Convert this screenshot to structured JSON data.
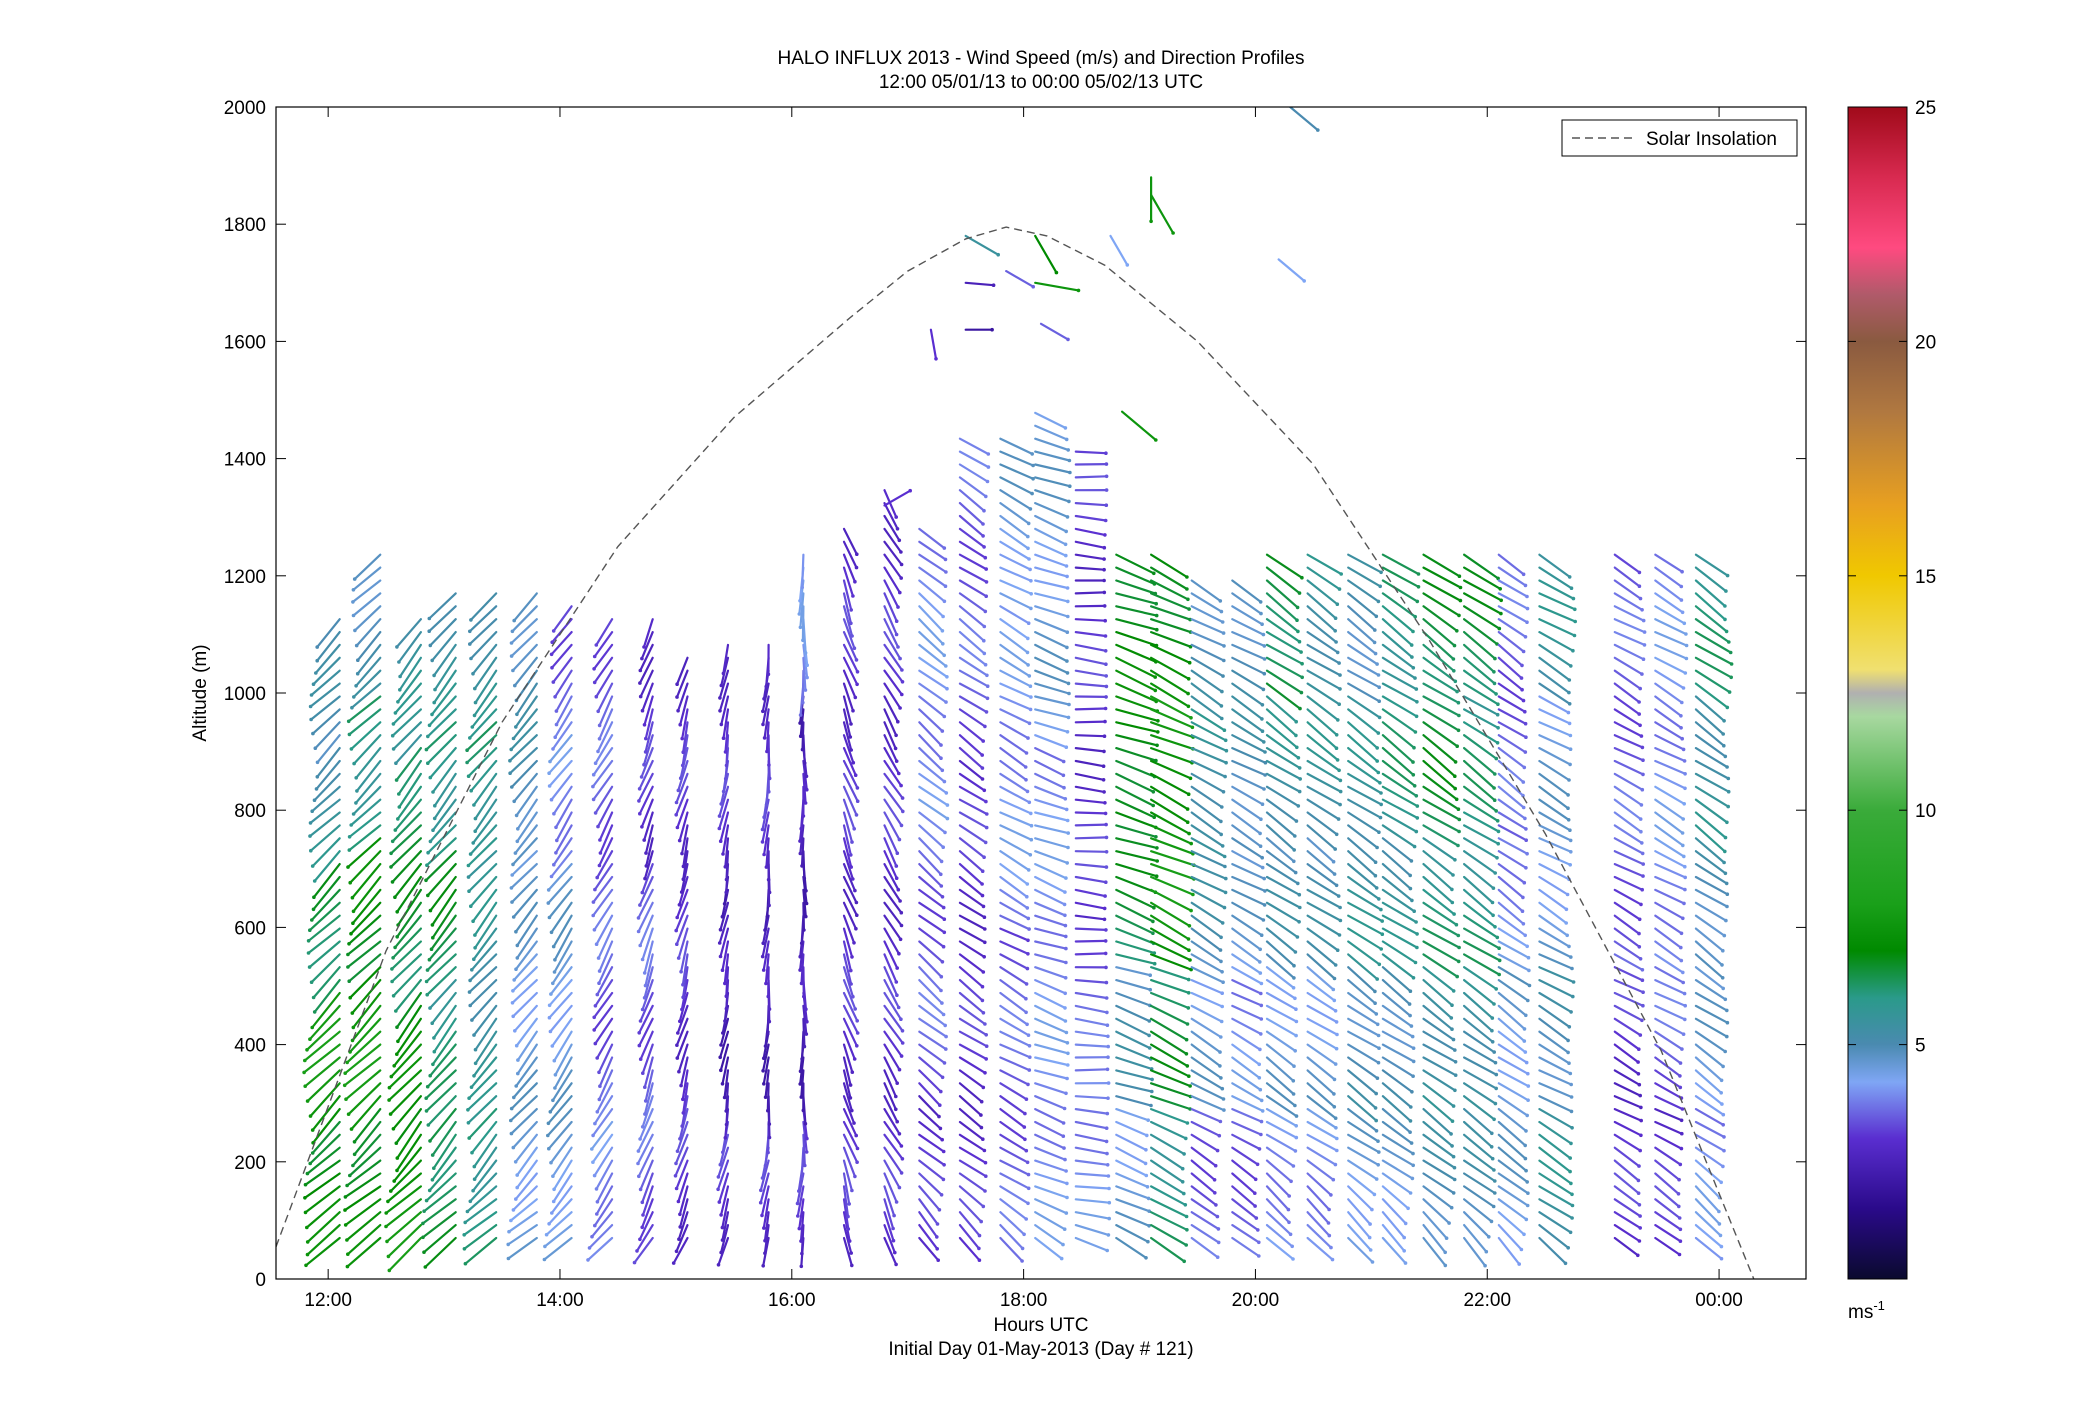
{
  "chart_data": {
    "type": "wind_barb_profile",
    "title": "HALO INFLUX 2013 - Wind Speed (m/s) and Direction Profiles",
    "subtitle": "12:00 05/01/13 to 00:00 05/02/13  UTC",
    "xlabel": "Hours UTC",
    "xlabel2": "Initial Day 01-May-2013 (Day # 121)",
    "ylabel": "Altitude (m)",
    "xlim": [
      11.55,
      24.75
    ],
    "ylim": [
      0,
      2000
    ],
    "x_tick_labels": [
      "12:00",
      "14:00",
      "16:00",
      "18:00",
      "20:00",
      "22:00",
      "00:00"
    ],
    "x_tick_values": [
      12,
      14,
      16,
      18,
      20,
      22,
      24
    ],
    "y_tick_values": [
      0,
      200,
      400,
      600,
      800,
      1000,
      1200,
      1400,
      1600,
      1800,
      2000
    ],
    "legend": {
      "label": "Solar Insolation",
      "placement": "top-right",
      "style": "dashed"
    },
    "solar_insolation": {
      "x": [
        11.55,
        12.5,
        13.5,
        14.5,
        15.5,
        16.5,
        17.0,
        17.5,
        17.85,
        18.2,
        18.7,
        19.5,
        20.5,
        21.5,
        22.5,
        23.5,
        24.3
      ],
      "y": [
        55,
        560,
        950,
        1250,
        1470,
        1640,
        1720,
        1775,
        1795,
        1780,
        1730,
        1600,
        1390,
        1090,
        760,
        390,
        0
      ]
    },
    "colorbar": {
      "min": 0,
      "max": 25,
      "tick_values": [
        5,
        10,
        15,
        20,
        25
      ],
      "tick_labels": [
        "5",
        "10",
        "15",
        "20",
        "25"
      ],
      "unit_label": "ms",
      "unit_exponent": "-1",
      "color_stops": [
        {
          "v": 0,
          "c": "#0a0a2e"
        },
        {
          "v": 1.5,
          "c": "#2a0a8a"
        },
        {
          "v": 3,
          "c": "#5a2ed0"
        },
        {
          "v": 4.2,
          "c": "#7fa6f5"
        },
        {
          "v": 5,
          "c": "#4a8ab0"
        },
        {
          "v": 6,
          "c": "#2a9a8a"
        },
        {
          "v": 7,
          "c": "#008a00"
        },
        {
          "v": 8,
          "c": "#1aa01a"
        },
        {
          "v": 10,
          "c": "#3aab3a"
        },
        {
          "v": 12,
          "c": "#a8d8a0"
        },
        {
          "v": 12.5,
          "c": "#b0b0b0"
        },
        {
          "v": 13,
          "c": "#f0e070"
        },
        {
          "v": 15,
          "c": "#f0c800"
        },
        {
          "v": 16.5,
          "c": "#e8a020"
        },
        {
          "v": 18.5,
          "c": "#b07840"
        },
        {
          "v": 20,
          "c": "#8a5a40"
        },
        {
          "v": 21,
          "c": "#b05a6a"
        },
        {
          "v": 22,
          "c": "#ff4a80"
        },
        {
          "v": 23.5,
          "c": "#d82a50"
        },
        {
          "v": 25,
          "c": "#a00a1a"
        }
      ]
    },
    "profiles": [
      {
        "time": 12.1,
        "alt_top": 1140,
        "dir": 225,
        "speed": [
          7.0,
          7.5,
          6.5,
          5.5,
          5.0
        ]
      },
      {
        "time": 12.45,
        "alt_top": 1240,
        "dir": 225,
        "speed": [
          7.0,
          7.5,
          7.0,
          6.0,
          5.0
        ]
      },
      {
        "time": 12.8,
        "alt_top": 1130,
        "dir": 220,
        "speed": [
          7.5,
          7.0,
          6.5,
          6.5,
          5.5
        ]
      },
      {
        "time": 13.1,
        "alt_top": 1180,
        "dir": 220,
        "speed": [
          6.5,
          6.0,
          6.5,
          6.0,
          5.5
        ]
      },
      {
        "time": 13.45,
        "alt_top": 1180,
        "dir": 220,
        "speed": [
          6.0,
          5.5,
          5.5,
          6.0,
          5.5
        ]
      },
      {
        "time": 13.8,
        "alt_top": 1180,
        "dir": 220,
        "speed": [
          4.5,
          4.5,
          4.5,
          5.0,
          5.0
        ]
      },
      {
        "time": 14.1,
        "alt_top": 1160,
        "dir": 215,
        "speed": [
          4.5,
          4.5,
          4.5,
          4.0,
          3.5
        ]
      },
      {
        "time": 14.45,
        "alt_top": 1140,
        "dir": 210,
        "speed": [
          4.0,
          3.5,
          3.5,
          3.5,
          3.5
        ]
      },
      {
        "time": 14.8,
        "alt_top": 1140,
        "dir": 200,
        "speed": [
          3.5,
          3.5,
          3.5,
          3.0,
          3.0
        ]
      },
      {
        "time": 15.1,
        "alt_top": 1080,
        "dir": 195,
        "speed": [
          3.0,
          3.0,
          3.0,
          3.0,
          3.0
        ]
      },
      {
        "time": 15.45,
        "alt_top": 1100,
        "dir": 190,
        "speed": [
          3.0,
          2.5,
          2.5,
          3.0,
          3.0
        ]
      },
      {
        "time": 15.8,
        "alt_top": 1090,
        "dir": 185,
        "speed": [
          3.0,
          2.5,
          2.5,
          3.0,
          3.0
        ]
      },
      {
        "time": 16.1,
        "alt_top": 1240,
        "dir": 180,
        "speed": [
          3.0,
          2.5,
          2.5,
          2.5,
          4.0
        ]
      },
      {
        "time": 16.45,
        "alt_top": 1280,
        "dir": 160,
        "speed": [
          3.0,
          3.0,
          3.0,
          3.0,
          3.0
        ]
      },
      {
        "time": 16.8,
        "alt_top": 1360,
        "dir": 150,
        "speed": [
          3.0,
          3.0,
          3.0,
          3.0,
          3.0
        ]
      },
      {
        "time": 17.1,
        "alt_top": 1290,
        "dir": 130,
        "speed": [
          3.0,
          3.5,
          3.5,
          4.0,
          4.0
        ]
      },
      {
        "time": 17.45,
        "alt_top": 1440,
        "dir": 125,
        "speed": [
          3.0,
          3.0,
          3.0,
          3.5,
          3.5
        ]
      },
      {
        "time": 17.8,
        "alt_top": 1440,
        "dir": 120,
        "speed": [
          3.5,
          3.5,
          4.0,
          4.0,
          4.5
        ]
      },
      {
        "time": 18.1,
        "alt_top": 1480,
        "dir": 110,
        "speed": [
          4.0,
          4.0,
          4.0,
          4.5,
          4.5
        ]
      },
      {
        "time": 18.45,
        "alt_top": 1420,
        "dir": 95,
        "speed": [
          4.0,
          3.5,
          3.0,
          3.0,
          3.0
        ]
      },
      {
        "time": 18.8,
        "alt_top": 1250,
        "dir": 110,
        "speed": [
          4.5,
          5.0,
          6.5,
          7.0,
          7.0
        ]
      },
      {
        "time": 19.1,
        "alt_top": 1240,
        "dir": 115,
        "speed": [
          6.0,
          6.5,
          7.5,
          7.5,
          7.0
        ]
      },
      {
        "time": 19.45,
        "alt_top": 1200,
        "dir": 120,
        "speed": [
          3.5,
          4.5,
          5.0,
          5.5,
          5.0
        ]
      },
      {
        "time": 19.8,
        "alt_top": 1200,
        "dir": 120,
        "speed": [
          3.5,
          4.0,
          4.5,
          5.0,
          5.0
        ]
      },
      {
        "time": 20.1,
        "alt_top": 1240,
        "dir": 125,
        "speed": [
          4.0,
          4.5,
          5.0,
          5.5,
          6.5
        ]
      },
      {
        "time": 20.45,
        "alt_top": 1240,
        "dir": 125,
        "speed": [
          4.0,
          4.5,
          5.0,
          5.5,
          5.5
        ]
      },
      {
        "time": 20.8,
        "alt_top": 1240,
        "dir": 125,
        "speed": [
          4.5,
          5.0,
          5.5,
          5.5,
          5.0
        ]
      },
      {
        "time": 21.1,
        "alt_top": 1240,
        "dir": 125,
        "speed": [
          4.5,
          5.0,
          5.5,
          6.0,
          6.0
        ]
      },
      {
        "time": 21.45,
        "alt_top": 1240,
        "dir": 125,
        "speed": [
          5.0,
          5.5,
          6.0,
          6.5,
          6.5
        ]
      },
      {
        "time": 21.8,
        "alt_top": 1240,
        "dir": 125,
        "speed": [
          5.0,
          5.5,
          6.0,
          6.0,
          6.5
        ]
      },
      {
        "time": 22.1,
        "alt_top": 1240,
        "dir": 125,
        "speed": [
          4.5,
          4.5,
          4.0,
          3.5,
          3.5
        ]
      },
      {
        "time": 22.45,
        "alt_top": 1240,
        "dir": 120,
        "speed": [
          5.5,
          5.0,
          4.5,
          4.5,
          5.5
        ]
      },
      {
        "time": 23.1,
        "alt_top": 1240,
        "dir": 120,
        "speed": [
          3.0,
          3.0,
          3.5,
          3.5,
          3.5
        ]
      },
      {
        "time": 23.45,
        "alt_top": 1240,
        "dir": 120,
        "speed": [
          3.0,
          3.5,
          4.0,
          4.0,
          4.0
        ]
      },
      {
        "time": 23.8,
        "alt_top": 1240,
        "dir": 125,
        "speed": [
          4.0,
          4.5,
          5.0,
          5.5,
          6.0
        ]
      }
    ],
    "sparse_vectors": [
      {
        "time": 17.2,
        "alt": 1620,
        "dir": 170,
        "speed": 3.0
      },
      {
        "time": 17.5,
        "alt": 1700,
        "dir": 95,
        "speed": 2.5
      },
      {
        "time": 17.5,
        "alt": 1620,
        "dir": 90,
        "speed": 2.0
      },
      {
        "time": 17.5,
        "alt": 1780,
        "dir": 120,
        "speed": 5.5
      },
      {
        "time": 17.85,
        "alt": 1720,
        "dir": 120,
        "speed": 3.5
      },
      {
        "time": 18.1,
        "alt": 1700,
        "dir": 100,
        "speed": 7.5
      },
      {
        "time": 18.1,
        "alt": 1780,
        "dir": 150,
        "speed": 7.0
      },
      {
        "time": 18.15,
        "alt": 1630,
        "dir": 120,
        "speed": 3.5
      },
      {
        "time": 18.75,
        "alt": 1780,
        "dir": 150,
        "speed": 4.2
      },
      {
        "time": 18.85,
        "alt": 1480,
        "dir": 130,
        "speed": 7.5
      },
      {
        "time": 19.1,
        "alt": 1880,
        "dir": 180,
        "speed": 7.5
      },
      {
        "time": 19.1,
        "alt": 1850,
        "dir": 150,
        "speed": 7.5
      },
      {
        "time": 20.2,
        "alt": 1740,
        "dir": 130,
        "speed": 4.2
      },
      {
        "time": 20.3,
        "alt": 2000,
        "dir": 130,
        "speed": 5.0
      },
      {
        "time": 16.8,
        "alt": 1320,
        "dir": 60,
        "speed": 3.0
      }
    ]
  }
}
